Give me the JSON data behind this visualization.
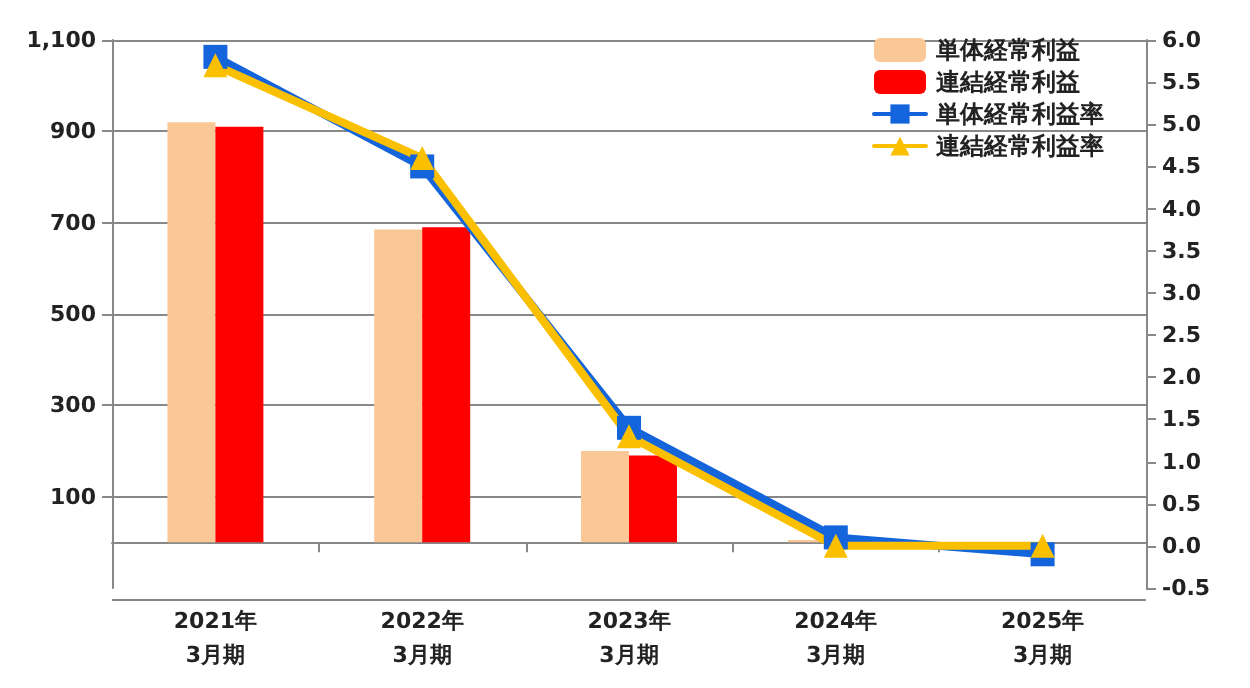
{
  "chart_data": {
    "type": "bar",
    "categories": [
      "2021年\n3月期",
      "2022年\n3月期",
      "2023年\n3月期",
      "2024年\n3月期",
      "2025年\n3月期"
    ],
    "series": [
      {
        "name": "単体経常利益",
        "color": "#fac896",
        "values": [
          920,
          685,
          200,
          5,
          null
        ]
      },
      {
        "name": "連結経常利益",
        "color": "#ff0000",
        "values": [
          910,
          690,
          190,
          null,
          null
        ]
      },
      {
        "name": "単体経常利益率",
        "type": "line",
        "axis": "y2",
        "color": "#1464dc",
        "marker": "square",
        "values": [
          5.8,
          4.5,
          1.4,
          0.1,
          -0.1
        ]
      },
      {
        "name": "連結経常利益率",
        "type": "line",
        "axis": "y2",
        "color": "#fac000",
        "marker": "triangle",
        "values": [
          5.7,
          4.6,
          1.3,
          0.0,
          0.0
        ]
      }
    ],
    "ylim": [
      -100,
      1100
    ],
    "yticks": [
      100,
      300,
      500,
      700,
      900,
      {
        "value": 1100,
        "label": "1,100"
      }
    ],
    "y2lim": [
      -0.5,
      6.0
    ],
    "y2ticks": [
      {
        "value": -0.5,
        "label": "-0.5"
      },
      {
        "value": 0,
        "label": "0.0"
      },
      {
        "value": 0.5,
        "label": "0.5"
      },
      {
        "value": 1,
        "label": "1.0"
      },
      {
        "value": 1.5,
        "label": "1.5"
      },
      {
        "value": 2,
        "label": "2.0"
      },
      {
        "value": 2.5,
        "label": "2.5"
      },
      {
        "value": 3,
        "label": "3.0"
      },
      {
        "value": 3.5,
        "label": "3.5"
      },
      {
        "value": 4,
        "label": "4.0"
      },
      {
        "value": 4.5,
        "label": "4.5"
      },
      {
        "value": 5,
        "label": "5.0"
      },
      {
        "value": 5.5,
        "label": "5.5"
      },
      {
        "value": 6,
        "label": "6.0"
      }
    ],
    "grid": "y",
    "legend": "top right",
    "line_style": "solid"
  }
}
